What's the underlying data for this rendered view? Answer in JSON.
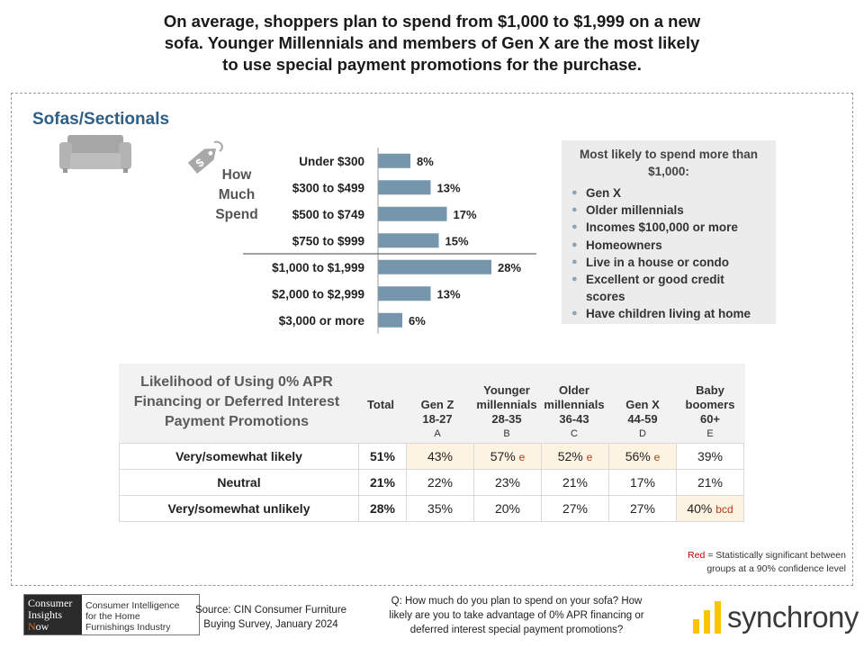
{
  "headline": {
    "line1": "On average, shoppers plan to spend from $1,000 to $1,999 on a new",
    "line2": "sofa. Younger Millennials and members of Gen X are the most likely",
    "line3": "to use special payment promotions for the purchase."
  },
  "section_title": "Sofas/Sectionals",
  "how_much": {
    "line1": "How",
    "line2": "Much",
    "line3": "Spend"
  },
  "chart_data": {
    "type": "bar",
    "orientation": "horizontal",
    "categories": [
      "Under $300",
      "$300 to $499",
      "$500 to $749",
      "$750 to $999",
      "$1,000 to $1,999",
      "$2,000 to $2,999",
      "$3,000 or more"
    ],
    "values": [
      8,
      13,
      17,
      15,
      28,
      13,
      6
    ],
    "value_labels": [
      "8%",
      "13%",
      "17%",
      "15%",
      "28%",
      "13%",
      "6%"
    ],
    "unit": "%",
    "bar_color": "#7696ad",
    "separator_after_index": 3,
    "legend": false,
    "grid": false
  },
  "sidebox": {
    "title_line1": "Most likely to spend more than",
    "title_line2": "$1,000:",
    "items": [
      "Gen X",
      "Older millennials",
      "Incomes $100,000 or more",
      "Homeowners",
      "Live in a house or condo",
      "Excellent or good credit scores",
      "Have children living at home"
    ]
  },
  "table": {
    "title": {
      "line1": "Likelihood of Using 0% APR",
      "line2": "Financing or Deferred Interest",
      "line3": "Payment Promotions"
    },
    "columns": [
      {
        "lines": [
          "Total"
        ],
        "letter": ""
      },
      {
        "lines": [
          "Gen Z",
          "18-27"
        ],
        "letter": "A"
      },
      {
        "lines": [
          "Younger",
          "millennials",
          "28-35"
        ],
        "letter": "B"
      },
      {
        "lines": [
          "Older",
          "millennials",
          "36-43"
        ],
        "letter": "C"
      },
      {
        "lines": [
          "Gen X",
          "44-59"
        ],
        "letter": "D"
      },
      {
        "lines": [
          "Baby",
          "boomers",
          "60+"
        ],
        "letter": "E"
      }
    ],
    "rows": [
      {
        "label": "Very/somewhat likely",
        "cells": [
          {
            "value": "51%",
            "sig": "",
            "highlight": false
          },
          {
            "value": "43%",
            "sig": "",
            "highlight": true
          },
          {
            "value": "57%",
            "sig": "e",
            "highlight": true
          },
          {
            "value": "52%",
            "sig": "e",
            "highlight": true
          },
          {
            "value": "56%",
            "sig": "e",
            "highlight": true
          },
          {
            "value": "39%",
            "sig": "",
            "highlight": false
          }
        ]
      },
      {
        "label": "Neutral",
        "cells": [
          {
            "value": "21%",
            "sig": "",
            "highlight": false
          },
          {
            "value": "22%",
            "sig": "",
            "highlight": false
          },
          {
            "value": "23%",
            "sig": "",
            "highlight": false
          },
          {
            "value": "21%",
            "sig": "",
            "highlight": false
          },
          {
            "value": "17%",
            "sig": "",
            "highlight": false
          },
          {
            "value": "21%",
            "sig": "",
            "highlight": false
          }
        ]
      },
      {
        "label": "Very/somewhat unlikely",
        "cells": [
          {
            "value": "28%",
            "sig": "",
            "highlight": false
          },
          {
            "value": "35%",
            "sig": "",
            "highlight": false
          },
          {
            "value": "20%",
            "sig": "",
            "highlight": false
          },
          {
            "value": "27%",
            "sig": "",
            "highlight": false
          },
          {
            "value": "27%",
            "sig": "",
            "highlight": false
          },
          {
            "value": "40%",
            "sig": "bcd",
            "highlight": true
          }
        ]
      }
    ]
  },
  "note": {
    "red_word": "Red",
    "rest_line1": " = Statistically significant between",
    "line2": "groups at a 90% confidence level"
  },
  "footer": {
    "cin_logo": {
      "w1": "Consumer",
      "w2": "Insights",
      "w3_n": "N",
      "w3_rest": "ow",
      "tagline1": "Consumer Intelligence",
      "tagline2": "for the Home",
      "tagline3": "Furnishings Industry"
    },
    "source_line1": "Source: CIN Consumer Furniture",
    "source_line2": "Buying Survey, January 2024",
    "question_line1": "Q: How much do you plan to spend on your sofa? How",
    "question_line2": "likely are you to take advantage of 0% APR financing or",
    "question_line3": "deferred interest special payment promotions?",
    "brand": "synchrony",
    "brand_color": "#fbc600"
  },
  "colors": {
    "accent_title": "#2e5f86",
    "highlight_cell": "#fdf3e1",
    "significance": "#b33a1e"
  }
}
